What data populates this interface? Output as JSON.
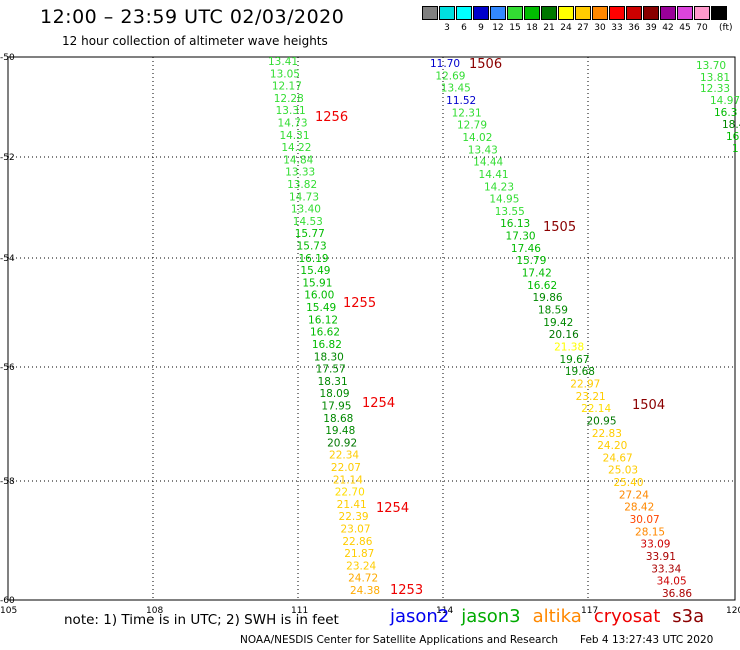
{
  "header": {
    "title": "12:00 – 23:59 UTC 02/03/2020",
    "subtitle": "12 hour collection of altimeter wave heights"
  },
  "legend": {
    "units": "(ft)",
    "items": [
      {
        "label": "",
        "color": "#808080"
      },
      {
        "label": "3",
        "color": "#00e0e0"
      },
      {
        "label": "6",
        "color": "#00ffff"
      },
      {
        "label": "9",
        "color": "#0000cc"
      },
      {
        "label": "12",
        "color": "#3388ff"
      },
      {
        "label": "15",
        "color": "#33dd33"
      },
      {
        "label": "18",
        "color": "#00bb00"
      },
      {
        "label": "21",
        "color": "#007700"
      },
      {
        "label": "24",
        "color": "#ffff00"
      },
      {
        "label": "27",
        "color": "#ffcc00"
      },
      {
        "label": "30",
        "color": "#ff8800"
      },
      {
        "label": "33",
        "color": "#ff0000"
      },
      {
        "label": "36",
        "color": "#cc0000"
      },
      {
        "label": "39",
        "color": "#880000"
      },
      {
        "label": "42",
        "color": "#990099"
      },
      {
        "label": "45",
        "color": "#dd44dd"
      },
      {
        "label": "70",
        "color": "#ff99cc"
      },
      {
        "label": "",
        "color": "#000000"
      }
    ]
  },
  "map": {
    "lon_ticks": [
      "105",
      "108",
      "111",
      "114",
      "117",
      "120"
    ],
    "lat_ticks": [
      "-50",
      "-52",
      "-54",
      "-56",
      "-58",
      "-60"
    ]
  },
  "tracks": {
    "track_a": {
      "values": [
        "13.41",
        "13.05",
        "12.17",
        "12.28",
        "13.31",
        "14.73",
        "14.31",
        "14.22",
        "14.84",
        "13.33",
        "13.82",
        "14.73",
        "13.40",
        "14.53",
        "15.77",
        "15.73",
        "16.19",
        "15.49",
        "15.91",
        "16.00",
        "15.49",
        "16.12",
        "16.62",
        "16.82",
        "18.30",
        "17.57",
        "18.31",
        "18.09",
        "17.95",
        "18.68",
        "19.48",
        "20.92",
        "22.34",
        "22.07",
        "21.14",
        "22.70",
        "21.41",
        "22.39",
        "23.07",
        "22.86",
        "21.87",
        "23.24",
        "24.72",
        "24.38"
      ],
      "colors": [
        "#33dd33",
        "#33dd33",
        "#33dd33",
        "#33dd33",
        "#33dd33",
        "#33dd33",
        "#33dd33",
        "#33dd33",
        "#33dd33",
        "#33dd33",
        "#33dd33",
        "#33dd33",
        "#33dd33",
        "#33dd33",
        "#00bb00",
        "#00bb00",
        "#00bb00",
        "#00bb00",
        "#00bb00",
        "#00bb00",
        "#00bb00",
        "#00bb00",
        "#00bb00",
        "#00bb00",
        "#008800",
        "#008800",
        "#008800",
        "#008800",
        "#008800",
        "#008800",
        "#008800",
        "#007700",
        "#ffcc00",
        "#ffcc00",
        "#ffcc00",
        "#ffdd00",
        "#ffcc00",
        "#ffcc00",
        "#ffcc00",
        "#ffcc00",
        "#ffcc00",
        "#ffcc00",
        "#ffaa00",
        "#ffaa00"
      ]
    },
    "track_b": {
      "values": [
        "11.70",
        "12.69",
        "13.45",
        "11.52",
        "12.31",
        "12.79",
        "14.02",
        "13.43",
        "14.44",
        "14.41",
        "14.23",
        "14.95",
        "13.55",
        "16.13",
        "17.30",
        "17.46",
        "15.79",
        "17.42",
        "16.62",
        "19.86",
        "18.59",
        "19.42",
        "20.16",
        "21.38",
        "19.67",
        "19.68",
        "22.97",
        "23.21",
        "22.14",
        "20.95",
        "22.83",
        "24.20",
        "24.67",
        "25.03",
        "25.40",
        "27.24",
        "28.42",
        "30.07",
        "28.15",
        "33.09",
        "33.91",
        "33.34",
        "34.05",
        "36.86"
      ],
      "colors": [
        "#0000cc",
        "#33dd33",
        "#33dd33",
        "#0000cc",
        "#33dd33",
        "#33dd33",
        "#33dd33",
        "#33dd33",
        "#33dd33",
        "#33dd33",
        "#33dd33",
        "#33dd33",
        "#33dd33",
        "#00bb00",
        "#00bb00",
        "#00bb00",
        "#00bb00",
        "#00bb00",
        "#00bb00",
        "#008800",
        "#008800",
        "#008800",
        "#007700",
        "#ffff00",
        "#008800",
        "#008800",
        "#ffcc00",
        "#ffcc00",
        "#ffdd00",
        "#007700",
        "#ffcc00",
        "#ffcc00",
        "#ffcc00",
        "#ffcc00",
        "#ffcc00",
        "#ff8800",
        "#ff8800",
        "#ff4400",
        "#ff8800",
        "#cc0000",
        "#aa0000",
        "#aa0000",
        "#cc0000",
        "#aa0000"
      ]
    },
    "track_c": {
      "values": [
        "13.70",
        "13.81",
        "12.33",
        "14.97",
        "16.3",
        "18.4",
        "16",
        "1"
      ],
      "colors": [
        "#33dd33",
        "#33dd33",
        "#33dd33",
        "#33dd33",
        "#00bb00",
        "#008800",
        "#00bb00",
        "#00bb00"
      ]
    },
    "time_labels": [
      {
        "text": "1256",
        "color": "#ee0000"
      },
      {
        "text": "1255",
        "color": "#ee0000"
      },
      {
        "text": "1254",
        "color": "#ee0000"
      },
      {
        "text": "1254",
        "color": "#ee0000"
      },
      {
        "text": "1253",
        "color": "#ee0000"
      },
      {
        "text": "1506",
        "color": "#8b0000"
      },
      {
        "text": "1505",
        "color": "#8b0000"
      },
      {
        "text": "1504",
        "color": "#8b0000"
      }
    ]
  },
  "footer": {
    "note": "note:  1) Time is in UTC; 2) SWH is in feet",
    "satellites": [
      {
        "name": "jason2",
        "color": "#0000ee"
      },
      {
        "name": "jason3",
        "color": "#00aa00"
      },
      {
        "name": "altika",
        "color": "#ff8800"
      },
      {
        "name": "cryosat",
        "color": "#ee0000"
      },
      {
        "name": "s3a",
        "color": "#8b0000"
      }
    ],
    "credit": "NOAA/NESDIS Center for Satellite Applications and Research",
    "timestamp": "Feb  4 13:27:43 UTC 2020"
  }
}
